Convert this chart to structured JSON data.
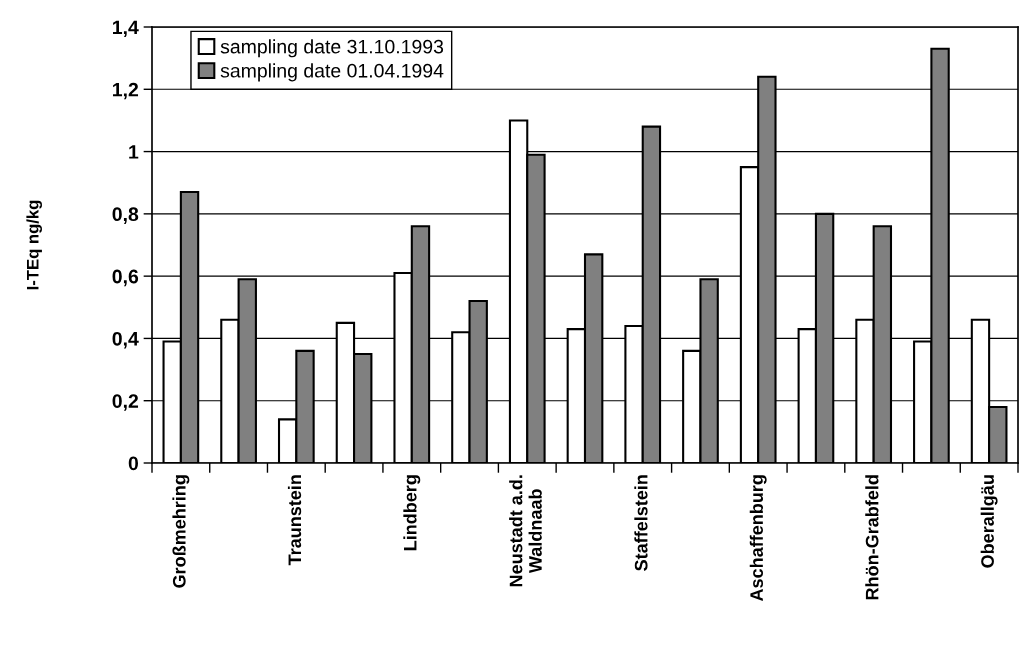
{
  "chart_data": {
    "type": "bar",
    "ylabel": "I-TEq ng/kg",
    "categories": [
      "Großmehring",
      null,
      "Traunstein",
      null,
      "Lindberg",
      null,
      "Neustadt a.d.\nWaldnaab",
      null,
      "Staffelstein",
      null,
      "Aschaffenburg",
      null,
      "Rhön-Grabfeld",
      null,
      "Oberallgäu"
    ],
    "series": [
      {
        "name": "sampling date 31.10.1993",
        "color": "#ffffff",
        "values": [
          0.39,
          0.46,
          0.14,
          0.45,
          0.61,
          0.42,
          1.1,
          0.43,
          0.44,
          0.36,
          0.95,
          0.43,
          0.46,
          0.39,
          0.46
        ]
      },
      {
        "name": "sampling date 01.04.1994",
        "color": "#808080",
        "values": [
          0.87,
          0.59,
          0.36,
          0.35,
          0.76,
          0.52,
          0.99,
          0.67,
          1.08,
          0.59,
          1.24,
          0.8,
          0.76,
          1.33,
          0.18
        ]
      }
    ],
    "ylim": [
      0,
      1.4
    ],
    "yticks": [
      0,
      {
        "value": 0.2,
        "label": "0,2"
      },
      {
        "value": 0.4,
        "label": "0,4"
      },
      {
        "value": 0.6,
        "label": "0,6"
      },
      {
        "value": 0.8,
        "label": "0,8"
      },
      1,
      {
        "value": 1.2,
        "label": "1,2"
      },
      {
        "value": 1.4,
        "label": "1,4"
      }
    ],
    "grid": "y",
    "legend": "top left"
  }
}
